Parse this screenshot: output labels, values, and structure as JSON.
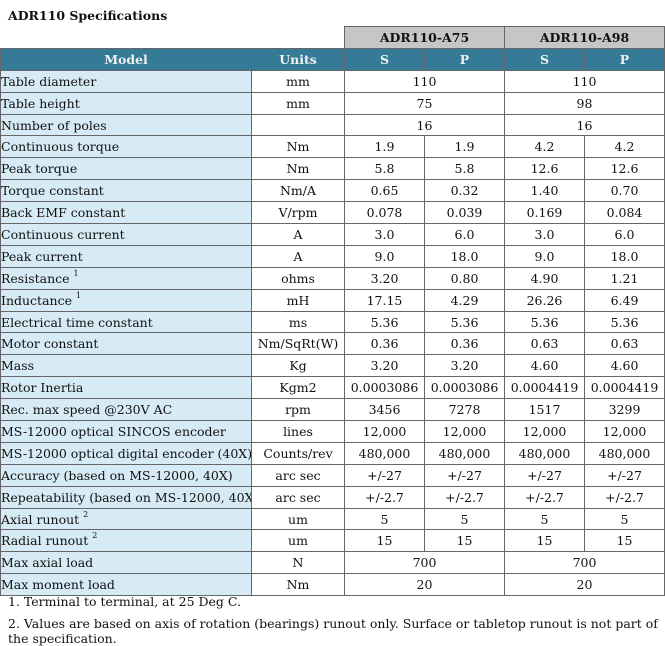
{
  "title": "ADR110 Specifications",
  "groups": [
    "ADR110-A75",
    "ADR110-A98"
  ],
  "headers": {
    "model": "Model",
    "units": "Units",
    "s": "S",
    "p": "P"
  },
  "rows": [
    {
      "name": "Table diameter",
      "unit": "mm",
      "merged": [
        "110",
        "110"
      ]
    },
    {
      "name": "Table height",
      "unit": "mm",
      "merged": [
        "75",
        "98"
      ]
    },
    {
      "name": "Number of poles",
      "unit": "",
      "merged": [
        "16",
        "16"
      ]
    },
    {
      "name": "Continuous torque",
      "unit": "Nm",
      "values": [
        "1.9",
        "1.9",
        "4.2",
        "4.2"
      ]
    },
    {
      "name": "Peak torque",
      "unit": "Nm",
      "values": [
        "5.8",
        "5.8",
        "12.6",
        "12.6"
      ]
    },
    {
      "name": "Torque constant",
      "unit": "Nm/A",
      "values": [
        "0.65",
        "0.32",
        "1.40",
        "0.70"
      ]
    },
    {
      "name": "Back EMF constant",
      "unit": "V/rpm",
      "values": [
        "0.078",
        "0.039",
        "0.169",
        "0.084"
      ]
    },
    {
      "name": "Continuous current",
      "unit": "A",
      "values": [
        "3.0",
        "6.0",
        "3.0",
        "6.0"
      ]
    },
    {
      "name": "Peak current",
      "unit": "A",
      "values": [
        "9.0",
        "18.0",
        "9.0",
        "18.0"
      ]
    },
    {
      "name": "Resistance",
      "sup": "1",
      "unit": "ohms",
      "values": [
        "3.20",
        "0.80",
        "4.90",
        "1.21"
      ]
    },
    {
      "name": "Inductance",
      "sup": "1",
      "unit": "mH",
      "values": [
        "17.15",
        "4.29",
        "26.26",
        "6.49"
      ]
    },
    {
      "name": "Electrical time constant",
      "unit": "ms",
      "values": [
        "5.36",
        "5.36",
        "5.36",
        "5.36"
      ]
    },
    {
      "name": "Motor constant",
      "unit": "Nm/SqRt(W)",
      "values": [
        "0.36",
        "0.36",
        "0.63",
        "0.63"
      ]
    },
    {
      "name": "Mass",
      "unit": "Kg",
      "values": [
        "3.20",
        "3.20",
        "4.60",
        "4.60"
      ]
    },
    {
      "name": "Rotor Inertia",
      "unit": "Kgm2",
      "values": [
        "0.0003086",
        "0.0003086",
        "0.0004419",
        "0.0004419"
      ]
    },
    {
      "name": "Rec. max speed @230V AC",
      "unit": "rpm",
      "values": [
        "3456",
        "7278",
        "1517",
        "3299"
      ]
    },
    {
      "name": "MS-12000 optical SINCOS encoder",
      "unit": "lines",
      "values": [
        "12,000",
        "12,000",
        "12,000",
        "12,000"
      ]
    },
    {
      "name": "MS-12000 optical digital encoder (40X)",
      "unit": "Counts/rev",
      "values": [
        "480,000",
        "480,000",
        "480,000",
        "480,000"
      ]
    },
    {
      "name": "Accuracy (based on MS-12000, 40X)",
      "unit": "arc sec",
      "values": [
        "+/-27",
        "+/-27",
        "+/-27",
        "+/-27"
      ]
    },
    {
      "name": "Repeatability    (based on MS-12000, 40X)",
      "unit": "arc sec",
      "values": [
        "+/-2.7",
        "+/-2.7",
        "+/-2.7",
        "+/-2.7"
      ]
    },
    {
      "name": "Axial runout",
      "sup": "2",
      "unit": "um",
      "values": [
        "5",
        "5",
        "5",
        "5"
      ]
    },
    {
      "name": "Radial runout",
      "sup": "2",
      "unit": "um",
      "values": [
        "15",
        "15",
        "15",
        "15"
      ]
    },
    {
      "name": "Max axial load",
      "unit": "N",
      "merged": [
        "700",
        "700"
      ]
    },
    {
      "name": "Max moment load",
      "unit": "Nm",
      "merged": [
        "20",
        "20"
      ]
    }
  ],
  "footnotes": [
    "1. Terminal to terminal, at 25 Deg C.",
    "2. Values are based on axis of rotation (bearings) runout only. Surface or tabletop runout is not part of the specification."
  ]
}
